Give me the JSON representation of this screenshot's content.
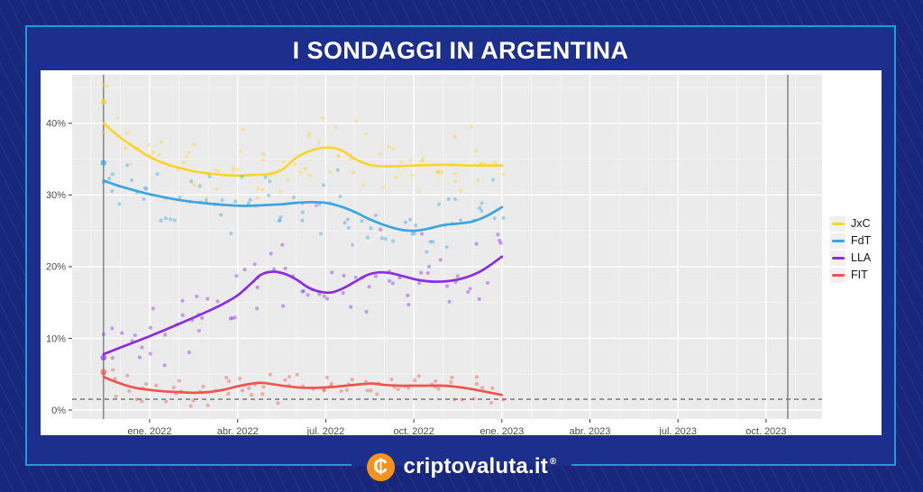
{
  "poster": {
    "title": "I SONDAGGI IN ARGENTINA",
    "brand": {
      "name": "criptovaluta.it",
      "registered_mark": "®",
      "coin_icon": "bitcoin-c-coin-icon",
      "coin_glyph": "₵",
      "coin_color": "#F7931A"
    },
    "colors": {
      "outer_background": "#18267C",
      "inner_background": "#1D2F8C",
      "frame_border": "#1E9CD8",
      "card_background": "#FFFFFF",
      "panel_background": "#EBEBEB",
      "grid_major": "#FFFFFF",
      "grid_minor": "#F6F6F6",
      "axis_text": "#4D4D4D",
      "reference_line": "#6E6E6E"
    }
  },
  "legend": {
    "position": "right",
    "items": [
      {
        "label": "JxC",
        "color": "#FFD42F"
      },
      {
        "label": "FdT",
        "color": "#3AA5DE"
      },
      {
        "label": "LLA",
        "color": "#8B2BE2"
      },
      {
        "label": "FIT",
        "color": "#F0544C"
      }
    ]
  },
  "chart_data": {
    "type": "scatter",
    "description": "Argentina presidential polling: individual poll results (dots) with smoothed trend lines per coalition, Nov 2021 - Jan 2023, axis extended to Oct 2023 election",
    "x_axis": {
      "tick_labels": [
        "ene. 2022",
        "abr. 2022",
        "jul. 2022",
        "oct. 2022",
        "ene. 2023",
        "abr. 2023",
        "jul. 2023",
        "oct. 2023"
      ],
      "tick_months": [
        0,
        3,
        6,
        9,
        12,
        15,
        18,
        21
      ],
      "minor_grid_every_months": 1,
      "domain_months": [
        -2.64,
        22.9
      ]
    },
    "y_axis": {
      "tick_labels": [
        "0%",
        "10%",
        "20%",
        "30%",
        "40%"
      ],
      "tick_values": [
        0,
        10,
        20,
        30,
        40
      ],
      "minor_grid_values": [
        5,
        15,
        25,
        35,
        45
      ],
      "domain": [
        -1.26,
        46.76
      ]
    },
    "grid": true,
    "legend_position": "right",
    "reference_lines": {
      "dashed_horizontal_pct": 1.5,
      "vertical_data_start_month": -1.57,
      "vertical_election_month": 21.74
    },
    "series": [
      {
        "name": "JxC",
        "color": "#FFD42F",
        "first_poll": [
          -1.57,
          43.0
        ],
        "trend": [
          [
            -1.57,
            40.0
          ],
          [
            -1,
            38.0
          ],
          [
            -0.5,
            36.6
          ],
          [
            0,
            35.3
          ],
          [
            0.5,
            34.4
          ],
          [
            1,
            33.8
          ],
          [
            1.5,
            33.3
          ],
          [
            2,
            33.0
          ],
          [
            2.5,
            32.8
          ],
          [
            3,
            32.7
          ],
          [
            3.5,
            32.8
          ],
          [
            4,
            32.9
          ],
          [
            4.5,
            33.5
          ],
          [
            5,
            35.2
          ],
          [
            5.5,
            36.2
          ],
          [
            6,
            36.6
          ],
          [
            6.5,
            36.3
          ],
          [
            7,
            35.0
          ],
          [
            7.5,
            34.2
          ],
          [
            8,
            34.0
          ],
          [
            9,
            34.1
          ],
          [
            10,
            34.2
          ],
          [
            11,
            34.1
          ],
          [
            12,
            34.1
          ]
        ],
        "scatter": {
          "n": 85,
          "sigma": 2.8,
          "seed": 7,
          "y_min": 28.0,
          "y_max": 46.3
        }
      },
      {
        "name": "FdT",
        "color": "#3AA5DE",
        "first_poll": [
          -1.57,
          34.5
        ],
        "trend": [
          [
            -1.57,
            32.0
          ],
          [
            -1,
            31.2
          ],
          [
            0,
            30.1
          ],
          [
            1,
            29.3
          ],
          [
            2,
            28.8
          ],
          [
            3,
            28.5
          ],
          [
            3.5,
            28.5
          ],
          [
            4,
            28.6
          ],
          [
            4.5,
            28.7
          ],
          [
            5,
            28.9
          ],
          [
            5.5,
            29.0
          ],
          [
            6,
            28.9
          ],
          [
            6.5,
            28.4
          ],
          [
            7,
            27.6
          ],
          [
            7.5,
            26.6
          ],
          [
            8,
            25.8
          ],
          [
            8.5,
            25.2
          ],
          [
            9,
            25.0
          ],
          [
            9.5,
            25.3
          ],
          [
            10,
            25.8
          ],
          [
            10.5,
            26.0
          ],
          [
            11,
            26.3
          ],
          [
            11.5,
            27.1
          ],
          [
            12,
            28.3
          ]
        ],
        "scatter": {
          "n": 82,
          "sigma": 2.3,
          "seed": 23,
          "y_min": 22.0,
          "y_max": 37.5
        }
      },
      {
        "name": "LLA",
        "color": "#8B2BE2",
        "first_poll": [
          -1.57,
          7.3
        ],
        "trend": [
          [
            -1.57,
            7.8
          ],
          [
            -1,
            8.7
          ],
          [
            0,
            10.3
          ],
          [
            1,
            12.0
          ],
          [
            2,
            13.8
          ],
          [
            2.5,
            14.8
          ],
          [
            3,
            16.0
          ],
          [
            3.5,
            17.8
          ],
          [
            3.8,
            18.9
          ],
          [
            4.2,
            19.3
          ],
          [
            4.6,
            19.0
          ],
          [
            5,
            18.2
          ],
          [
            5.4,
            17.1
          ],
          [
            5.8,
            16.5
          ],
          [
            6.2,
            16.4
          ],
          [
            6.6,
            17.0
          ],
          [
            7,
            17.9
          ],
          [
            7.4,
            18.8
          ],
          [
            7.8,
            19.2
          ],
          [
            8.2,
            19.1
          ],
          [
            8.7,
            18.6
          ],
          [
            9.2,
            18.1
          ],
          [
            9.7,
            17.9
          ],
          [
            10.2,
            18.0
          ],
          [
            10.7,
            18.4
          ],
          [
            11.2,
            19.2
          ],
          [
            11.6,
            20.2
          ],
          [
            12,
            21.4
          ]
        ],
        "scatter": {
          "n": 80,
          "sigma": 2.4,
          "seed": 41,
          "y_min": 6.0,
          "y_max": 26.5
        }
      },
      {
        "name": "FIT",
        "color": "#F0544C",
        "first_poll": [
          -1.57,
          5.3
        ],
        "trend": [
          [
            -1.57,
            4.6
          ],
          [
            -1,
            3.7
          ],
          [
            -0.5,
            3.1
          ],
          [
            0,
            2.8
          ],
          [
            0.5,
            2.6
          ],
          [
            1,
            2.5
          ],
          [
            1.5,
            2.4
          ],
          [
            2,
            2.5
          ],
          [
            2.5,
            2.8
          ],
          [
            3,
            3.3
          ],
          [
            3.5,
            3.7
          ],
          [
            3.8,
            3.8
          ],
          [
            4.2,
            3.6
          ],
          [
            4.7,
            3.3
          ],
          [
            5.2,
            3.1
          ],
          [
            5.7,
            3.1
          ],
          [
            6.2,
            3.2
          ],
          [
            6.7,
            3.4
          ],
          [
            7.2,
            3.6
          ],
          [
            7.6,
            3.7
          ],
          [
            8,
            3.5
          ],
          [
            8.5,
            3.4
          ],
          [
            9,
            3.4
          ],
          [
            9.5,
            3.4
          ],
          [
            10,
            3.4
          ],
          [
            10.5,
            3.2
          ],
          [
            11,
            2.9
          ],
          [
            11.5,
            2.5
          ],
          [
            12,
            2.1
          ]
        ],
        "scatter": {
          "n": 76,
          "sigma": 1.05,
          "seed": 59,
          "y_min": 0.4,
          "y_max": 6.6
        }
      }
    ]
  }
}
